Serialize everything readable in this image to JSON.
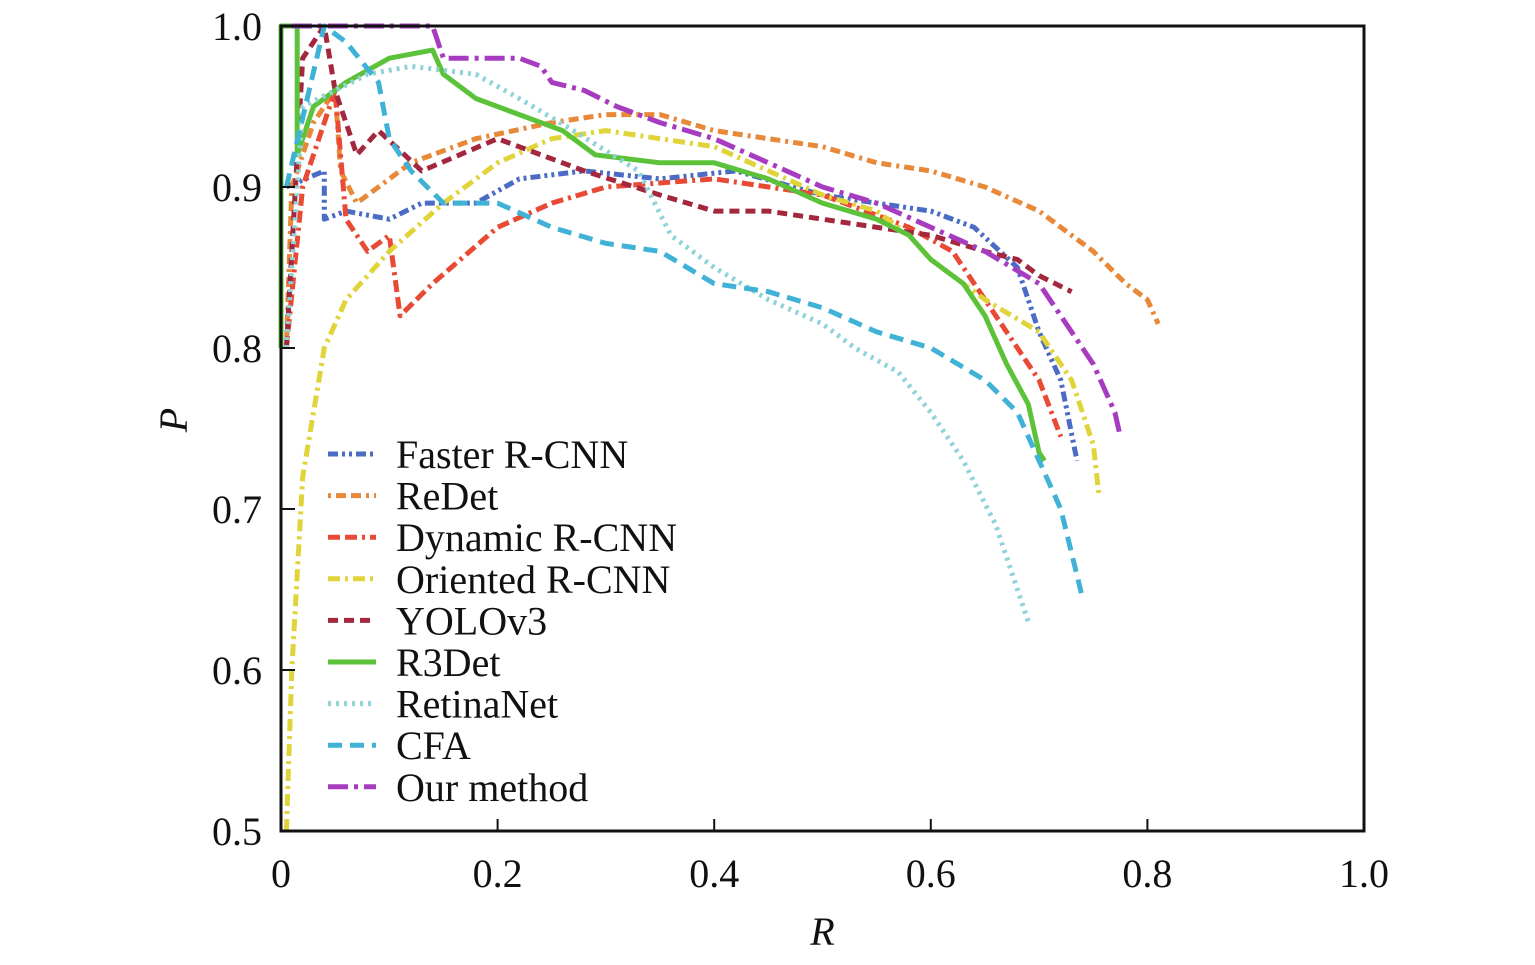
{
  "chart_data": {
    "type": "line",
    "title": "",
    "xlabel": "R",
    "ylabel": "P",
    "xlim": [
      0,
      1.0
    ],
    "ylim": [
      0.5,
      1.0
    ],
    "xticks": [
      "0",
      "0.2",
      "0.4",
      "0.6",
      "0.8",
      "1.0"
    ],
    "xtick_values": [
      0,
      0.2,
      0.4,
      0.6,
      0.8,
      1.0
    ],
    "yticks": [
      "0.5",
      "0.6",
      "0.7",
      "0.8",
      "0.9",
      "1.0"
    ],
    "ytick_values": [
      0.5,
      0.6,
      0.7,
      0.8,
      0.9,
      1.0
    ],
    "grid": false,
    "legend_position": "bottom-left",
    "series": [
      {
        "name": "Faster R-CNN",
        "color": "#4a6cc4",
        "dash": "dash-dot-dot",
        "x": [
          0.005,
          0.04,
          0.04,
          0.06,
          0.1,
          0.13,
          0.18,
          0.22,
          0.28,
          0.35,
          0.42,
          0.5,
          0.55,
          0.6,
          0.64,
          0.68,
          0.7,
          0.72,
          0.735
        ],
        "y": [
          0.9,
          0.91,
          0.88,
          0.885,
          0.88,
          0.89,
          0.89,
          0.905,
          0.91,
          0.905,
          0.91,
          0.895,
          0.89,
          0.885,
          0.875,
          0.85,
          0.81,
          0.78,
          0.73
        ]
      },
      {
        "name": "ReDet",
        "color": "#e8893a",
        "dash": "dot-dash-dash",
        "x": [
          0.005,
          0.01,
          0.03,
          0.05,
          0.055,
          0.07,
          0.12,
          0.18,
          0.25,
          0.3,
          0.35,
          0.4,
          0.45,
          0.5,
          0.55,
          0.6,
          0.65,
          0.7,
          0.75,
          0.78,
          0.8,
          0.81
        ],
        "y": [
          0.8,
          0.9,
          0.94,
          0.96,
          0.91,
          0.89,
          0.915,
          0.93,
          0.94,
          0.945,
          0.945,
          0.935,
          0.93,
          0.925,
          0.915,
          0.91,
          0.9,
          0.885,
          0.86,
          0.84,
          0.83,
          0.815
        ]
      },
      {
        "name": "Dynamic R-CNN",
        "color": "#e84a35",
        "dash": "dash-dash-dot",
        "x": [
          0.005,
          0.02,
          0.05,
          0.06,
          0.08,
          0.1,
          0.11,
          0.14,
          0.2,
          0.25,
          0.3,
          0.4,
          0.5,
          0.58,
          0.62,
          0.65,
          0.68,
          0.7,
          0.72
        ],
        "y": [
          0.8,
          0.9,
          0.96,
          0.88,
          0.86,
          0.87,
          0.82,
          0.84,
          0.875,
          0.89,
          0.9,
          0.905,
          0.895,
          0.875,
          0.86,
          0.83,
          0.8,
          0.78,
          0.745
        ]
      },
      {
        "name": "Oriented R-CNN",
        "color": "#e0d43a",
        "dash": "dash-dot",
        "x": [
          0.005,
          0.01,
          0.02,
          0.04,
          0.06,
          0.1,
          0.15,
          0.2,
          0.25,
          0.3,
          0.35,
          0.4,
          0.45,
          0.5,
          0.55,
          0.58,
          0.6,
          0.65,
          0.7,
          0.73,
          0.75,
          0.755
        ],
        "y": [
          0.5,
          0.6,
          0.72,
          0.8,
          0.83,
          0.86,
          0.89,
          0.915,
          0.93,
          0.935,
          0.93,
          0.925,
          0.91,
          0.895,
          0.885,
          0.87,
          0.855,
          0.83,
          0.81,
          0.78,
          0.74,
          0.71
        ]
      },
      {
        "name": "YOLOv3",
        "color": "#a3283e",
        "dash": "dashed",
        "x": [
          0.005,
          0.02,
          0.04,
          0.05,
          0.07,
          0.09,
          0.13,
          0.2,
          0.28,
          0.35,
          0.4,
          0.45,
          0.5,
          0.55,
          0.6,
          0.65,
          0.68,
          0.7,
          0.73
        ],
        "y": [
          0.8,
          0.98,
          1.0,
          0.96,
          0.92,
          0.935,
          0.91,
          0.93,
          0.91,
          0.895,
          0.885,
          0.885,
          0.88,
          0.875,
          0.87,
          0.86,
          0.855,
          0.845,
          0.835
        ]
      },
      {
        "name": "R3Det",
        "color": "#5cc23a",
        "dash": "solid",
        "x": [
          0.0,
          0.0,
          0.015,
          0.015,
          0.03,
          0.06,
          0.1,
          0.14,
          0.15,
          0.18,
          0.22,
          0.26,
          0.29,
          0.35,
          0.4,
          0.45,
          0.5,
          0.55,
          0.58,
          0.6,
          0.63,
          0.65,
          0.67,
          0.69,
          0.7,
          0.705
        ],
        "y": [
          0.8,
          1.0,
          1.0,
          0.92,
          0.95,
          0.965,
          0.98,
          0.985,
          0.97,
          0.955,
          0.945,
          0.935,
          0.92,
          0.915,
          0.915,
          0.905,
          0.89,
          0.88,
          0.87,
          0.855,
          0.84,
          0.82,
          0.79,
          0.765,
          0.735,
          0.73
        ]
      },
      {
        "name": "RetinaNet",
        "color": "#8fd3d8",
        "dash": "dotted",
        "x": [
          0.005,
          0.02,
          0.08,
          0.12,
          0.18,
          0.22,
          0.27,
          0.33,
          0.36,
          0.4,
          0.45,
          0.5,
          0.53,
          0.57,
          0.6,
          0.63,
          0.66,
          0.68,
          0.69
        ],
        "y": [
          0.8,
          0.95,
          0.97,
          0.975,
          0.97,
          0.955,
          0.935,
          0.91,
          0.87,
          0.85,
          0.83,
          0.815,
          0.8,
          0.785,
          0.76,
          0.73,
          0.69,
          0.65,
          0.63
        ]
      },
      {
        "name": "CFA",
        "color": "#3fb2d6",
        "dash": "long-dash",
        "x": [
          0.005,
          0.04,
          0.06,
          0.09,
          0.1,
          0.12,
          0.15,
          0.2,
          0.25,
          0.3,
          0.35,
          0.4,
          0.45,
          0.5,
          0.55,
          0.6,
          0.65,
          0.68,
          0.7,
          0.72,
          0.74
        ],
        "y": [
          0.9,
          1.0,
          0.99,
          0.965,
          0.93,
          0.91,
          0.89,
          0.89,
          0.875,
          0.865,
          0.86,
          0.84,
          0.835,
          0.825,
          0.81,
          0.8,
          0.78,
          0.76,
          0.73,
          0.7,
          0.645
        ]
      },
      {
        "name": "Our method",
        "color": "#a73cc0",
        "dash": "long-dash-dot",
        "x": [
          0.01,
          0.14,
          0.15,
          0.22,
          0.24,
          0.25,
          0.28,
          0.31,
          0.35,
          0.4,
          0.45,
          0.5,
          0.55,
          0.6,
          0.65,
          0.7,
          0.73,
          0.75,
          0.77,
          0.775
        ],
        "y": [
          1.0,
          1.0,
          0.98,
          0.98,
          0.975,
          0.965,
          0.96,
          0.95,
          0.94,
          0.93,
          0.915,
          0.9,
          0.89,
          0.875,
          0.86,
          0.84,
          0.81,
          0.79,
          0.76,
          0.745
        ]
      }
    ]
  }
}
